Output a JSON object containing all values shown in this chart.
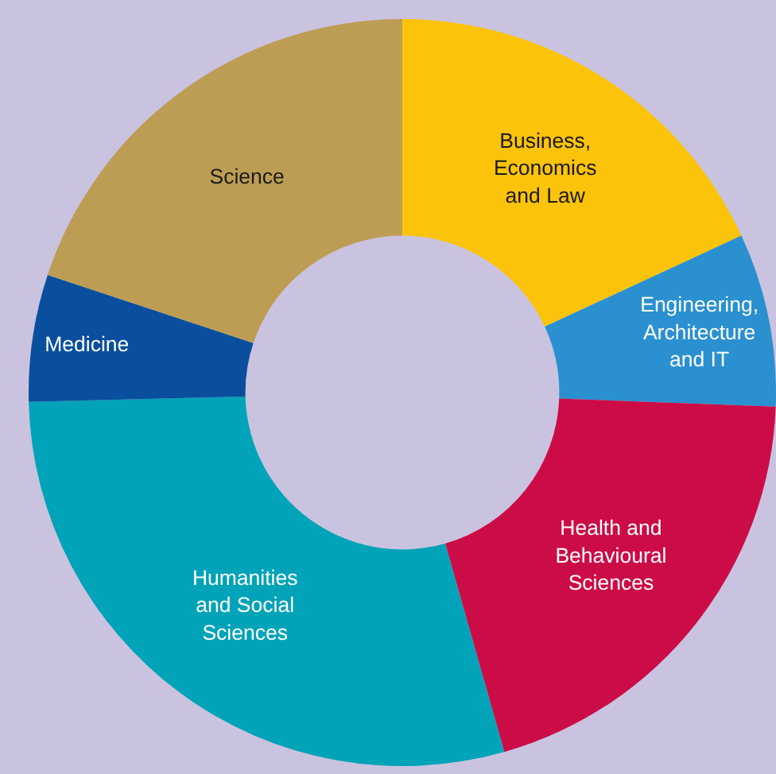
{
  "chart_data": {
    "type": "donut",
    "categories": [
      "Business,\nEconomics\nand Law",
      "Engineering,\nArchitecture\nand IT",
      "Health and\nBehavioural\nSciences",
      "Humanities\nand Social\nSciences",
      "Medicine",
      "Science"
    ],
    "values": [
      18.1,
      7.5,
      20.0,
      29.0,
      5.5,
      19.9
    ],
    "colors": [
      "#fcc30b",
      "#2a90d0",
      "#cc0c46",
      "#00a3b8",
      "#0a4f9e",
      "#bd9d53"
    ],
    "legend": false
  }
}
